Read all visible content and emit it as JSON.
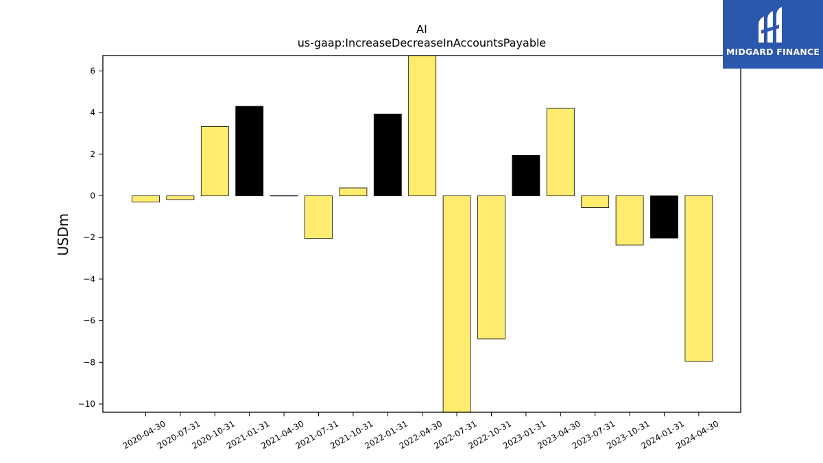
{
  "chart_data": {
    "type": "bar",
    "title": "AI",
    "subtitle": "us-gaap:IncreaseDecreaseInAccountsPayable",
    "xlabel": "",
    "ylabel": "USDm",
    "ylim": [
      -10.4,
      6.8
    ],
    "yticks": [
      6,
      4,
      2,
      0,
      -2,
      -4,
      -6,
      -8,
      -10
    ],
    "ytick_labels": [
      "6",
      "4",
      "2",
      "0",
      "−2",
      "−4",
      "−6",
      "−8",
      "−10"
    ],
    "grid": false,
    "categories": [
      "2020-04-30",
      "2020-07-31",
      "2020-10-31",
      "2021-01-31",
      "2021-04-30",
      "2021-07-31",
      "2021-10-31",
      "2022-01-31",
      "2022-04-30",
      "2022-07-31",
      "2022-10-31",
      "2023-01-31",
      "2023-04-30",
      "2023-07-31",
      "2023-10-31",
      "2024-01-31",
      "2024-04-30"
    ],
    "values": [
      -0.3,
      -0.18,
      3.33,
      4.3,
      0.01,
      -2.05,
      0.38,
      3.93,
      6.8,
      -10.4,
      -6.87,
      1.95,
      4.2,
      -0.56,
      -2.36,
      -2.03,
      -7.95
    ],
    "bar_colors": [
      "#ffec6e",
      "#ffec6e",
      "#ffec6e",
      "#000000",
      "#ffec6e",
      "#ffec6e",
      "#ffec6e",
      "#000000",
      "#ffec6e",
      "#ffec6e",
      "#ffec6e",
      "#000000",
      "#ffec6e",
      "#ffec6e",
      "#ffec6e",
      "#000000",
      "#ffec6e"
    ]
  },
  "logo": {
    "text": "MIDGARD FINANCE",
    "background": "#2b57ac"
  }
}
